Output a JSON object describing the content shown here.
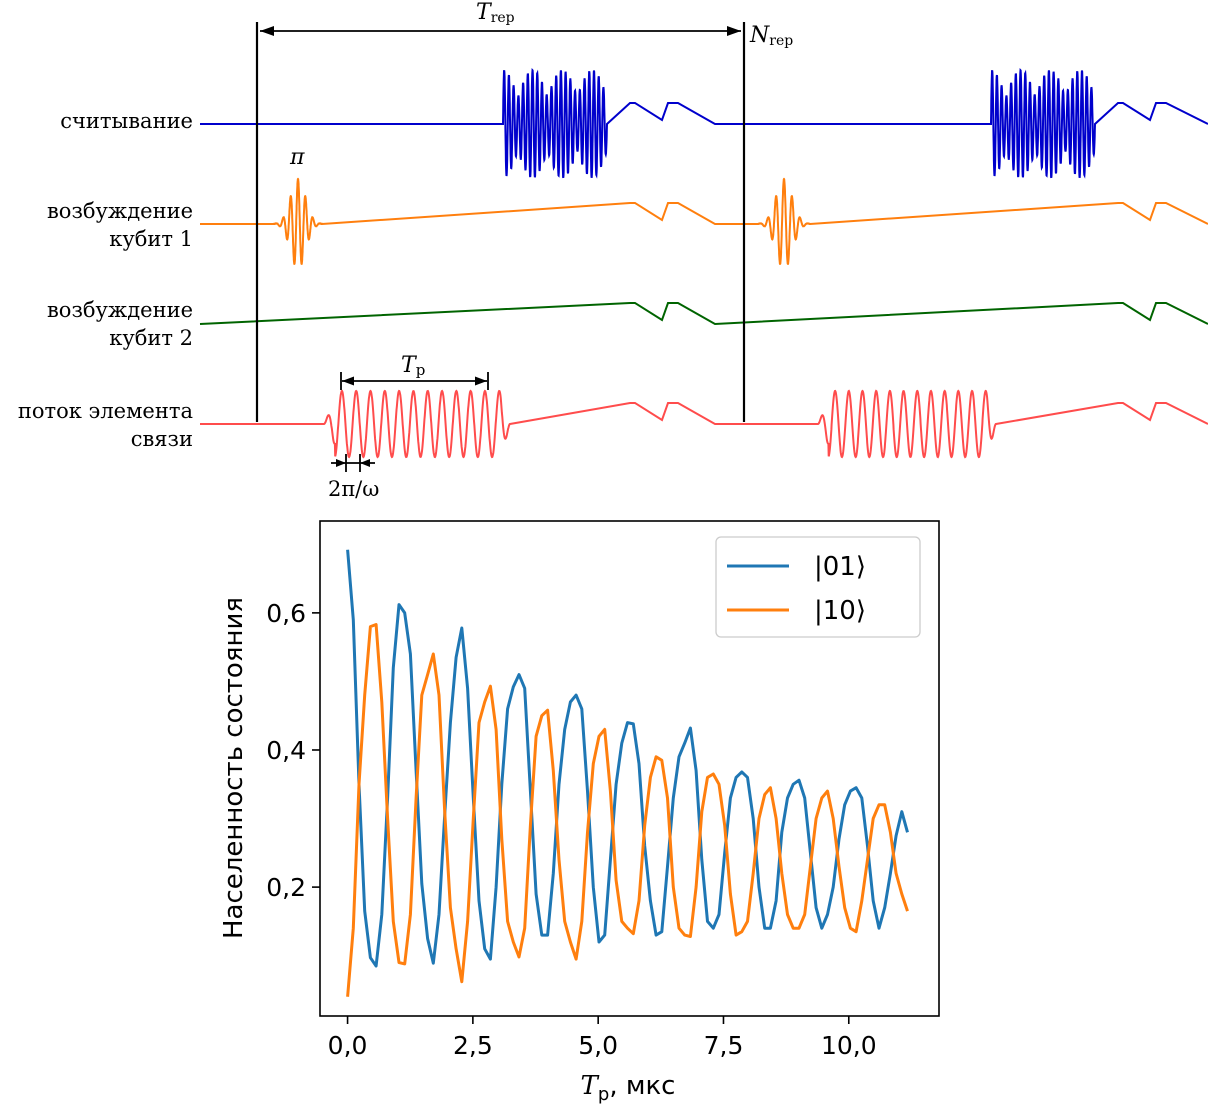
{
  "pulse_diagram": {
    "channels": [
      {
        "label_lines": [
          "считывание"
        ],
        "color": "#0000cc",
        "envelope": "readout"
      },
      {
        "label_lines": [
          "возбуждение",
          "кубит 1"
        ],
        "color": "#ff7f0e",
        "envelope": "pi"
      },
      {
        "label_lines": [
          "возбуждение",
          "кубит 2"
        ],
        "color": "#006400",
        "envelope": "none"
      },
      {
        "label_lines": [
          "поток элемента",
          "связи"
        ],
        "color": "#ff4c4c",
        "envelope": "flux"
      }
    ],
    "t_rep_label": "T",
    "t_rep_sub": "rep",
    "n_rep_label": "N",
    "n_rep_sub": "rep",
    "pi_label": "π",
    "tp_label": "T",
    "tp_sub": "p",
    "period_label": "2π/ω"
  },
  "chart_data": {
    "type": "line",
    "xlabel_main": "T",
    "xlabel_sub": "p",
    "xlabel_unit": ", мкс",
    "ylabel": "Населенность состояния",
    "xlim": [
      -0.55,
      11.8
    ],
    "ylim": [
      0.012,
      0.734
    ],
    "xticks": [
      0.0,
      2.5,
      5.0,
      7.5,
      10.0
    ],
    "xtick_labels": [
      "0,0",
      "2,5",
      "5,0",
      "7,5",
      "10,0"
    ],
    "yticks": [
      0.2,
      0.4,
      0.6
    ],
    "ytick_labels": [
      "0,2",
      "0,4",
      "0,6"
    ],
    "legend_position": "top-right",
    "series": [
      {
        "name": "|01⟩",
        "color": "#1f77b4",
        "points": [
          [
            0.0,
            0.692
          ],
          [
            0.114,
            0.59
          ],
          [
            0.228,
            0.35
          ],
          [
            0.342,
            0.165
          ],
          [
            0.456,
            0.097
          ],
          [
            0.57,
            0.085
          ],
          [
            0.684,
            0.16
          ],
          [
            0.798,
            0.33
          ],
          [
            0.912,
            0.52
          ],
          [
            1.026,
            0.612
          ],
          [
            1.14,
            0.6
          ],
          [
            1.254,
            0.54
          ],
          [
            1.368,
            0.37
          ],
          [
            1.482,
            0.205
          ],
          [
            1.596,
            0.125
          ],
          [
            1.71,
            0.089
          ],
          [
            1.824,
            0.16
          ],
          [
            1.938,
            0.305
          ],
          [
            2.052,
            0.44
          ],
          [
            2.166,
            0.535
          ],
          [
            2.28,
            0.578
          ],
          [
            2.394,
            0.49
          ],
          [
            2.508,
            0.33
          ],
          [
            2.622,
            0.18
          ],
          [
            2.736,
            0.11
          ],
          [
            2.85,
            0.095
          ],
          [
            2.964,
            0.2
          ],
          [
            3.078,
            0.35
          ],
          [
            3.192,
            0.46
          ],
          [
            3.306,
            0.492
          ],
          [
            3.42,
            0.51
          ],
          [
            3.534,
            0.49
          ],
          [
            3.648,
            0.34
          ],
          [
            3.762,
            0.19
          ],
          [
            3.876,
            0.13
          ],
          [
            3.99,
            0.13
          ],
          [
            4.104,
            0.22
          ],
          [
            4.218,
            0.35
          ],
          [
            4.332,
            0.43
          ],
          [
            4.446,
            0.47
          ],
          [
            4.56,
            0.48
          ],
          [
            4.674,
            0.46
          ],
          [
            4.788,
            0.34
          ],
          [
            4.902,
            0.2
          ],
          [
            5.016,
            0.12
          ],
          [
            5.13,
            0.13
          ],
          [
            5.244,
            0.24
          ],
          [
            5.358,
            0.35
          ],
          [
            5.472,
            0.41
          ],
          [
            5.586,
            0.44
          ],
          [
            5.7,
            0.438
          ],
          [
            5.814,
            0.38
          ],
          [
            5.928,
            0.26
          ],
          [
            6.042,
            0.18
          ],
          [
            6.156,
            0.13
          ],
          [
            6.27,
            0.135
          ],
          [
            6.384,
            0.23
          ],
          [
            6.498,
            0.33
          ],
          [
            6.612,
            0.39
          ],
          [
            6.726,
            0.41
          ],
          [
            6.84,
            0.432
          ],
          [
            6.954,
            0.37
          ],
          [
            7.068,
            0.24
          ],
          [
            7.182,
            0.15
          ],
          [
            7.296,
            0.14
          ],
          [
            7.41,
            0.16
          ],
          [
            7.524,
            0.25
          ],
          [
            7.638,
            0.33
          ],
          [
            7.752,
            0.36
          ],
          [
            7.866,
            0.368
          ],
          [
            7.98,
            0.36
          ],
          [
            8.094,
            0.3
          ],
          [
            8.208,
            0.2
          ],
          [
            8.322,
            0.14
          ],
          [
            8.436,
            0.14
          ],
          [
            8.55,
            0.18
          ],
          [
            8.664,
            0.28
          ],
          [
            8.778,
            0.33
          ],
          [
            8.892,
            0.35
          ],
          [
            9.006,
            0.356
          ],
          [
            9.12,
            0.33
          ],
          [
            9.234,
            0.25
          ],
          [
            9.348,
            0.17
          ],
          [
            9.462,
            0.14
          ],
          [
            9.576,
            0.16
          ],
          [
            9.69,
            0.2
          ],
          [
            9.804,
            0.27
          ],
          [
            9.918,
            0.32
          ],
          [
            10.032,
            0.34
          ],
          [
            10.146,
            0.345
          ],
          [
            10.26,
            0.33
          ],
          [
            10.374,
            0.26
          ],
          [
            10.488,
            0.18
          ],
          [
            10.602,
            0.14
          ],
          [
            10.716,
            0.17
          ],
          [
            10.83,
            0.22
          ],
          [
            10.944,
            0.275
          ],
          [
            11.058,
            0.31
          ],
          [
            11.172,
            0.28
          ]
        ]
      },
      {
        "name": "|10⟩",
        "color": "#ff7f0e",
        "points": [
          [
            0.0,
            0.04
          ],
          [
            0.114,
            0.14
          ],
          [
            0.228,
            0.35
          ],
          [
            0.342,
            0.48
          ],
          [
            0.456,
            0.58
          ],
          [
            0.57,
            0.583
          ],
          [
            0.684,
            0.47
          ],
          [
            0.798,
            0.3
          ],
          [
            0.912,
            0.15
          ],
          [
            1.026,
            0.09
          ],
          [
            1.14,
            0.088
          ],
          [
            1.254,
            0.16
          ],
          [
            1.368,
            0.33
          ],
          [
            1.482,
            0.48
          ],
          [
            1.596,
            0.51
          ],
          [
            1.71,
            0.54
          ],
          [
            1.824,
            0.48
          ],
          [
            1.938,
            0.31
          ],
          [
            2.052,
            0.17
          ],
          [
            2.166,
            0.11
          ],
          [
            2.28,
            0.062
          ],
          [
            2.394,
            0.15
          ],
          [
            2.508,
            0.3
          ],
          [
            2.622,
            0.44
          ],
          [
            2.736,
            0.47
          ],
          [
            2.85,
            0.493
          ],
          [
            2.964,
            0.43
          ],
          [
            3.078,
            0.27
          ],
          [
            3.192,
            0.15
          ],
          [
            3.306,
            0.12
          ],
          [
            3.42,
            0.098
          ],
          [
            3.534,
            0.14
          ],
          [
            3.648,
            0.29
          ],
          [
            3.762,
            0.42
          ],
          [
            3.876,
            0.45
          ],
          [
            3.99,
            0.458
          ],
          [
            4.104,
            0.37
          ],
          [
            4.218,
            0.24
          ],
          [
            4.332,
            0.15
          ],
          [
            4.446,
            0.12
          ],
          [
            4.56,
            0.095
          ],
          [
            4.674,
            0.15
          ],
          [
            4.788,
            0.28
          ],
          [
            4.902,
            0.38
          ],
          [
            5.016,
            0.42
          ],
          [
            5.13,
            0.43
          ],
          [
            5.244,
            0.34
          ],
          [
            5.358,
            0.21
          ],
          [
            5.472,
            0.15
          ],
          [
            5.586,
            0.14
          ],
          [
            5.7,
            0.132
          ],
          [
            5.814,
            0.18
          ],
          [
            5.928,
            0.29
          ],
          [
            6.042,
            0.36
          ],
          [
            6.156,
            0.39
          ],
          [
            6.27,
            0.385
          ],
          [
            6.384,
            0.33
          ],
          [
            6.498,
            0.2
          ],
          [
            6.612,
            0.14
          ],
          [
            6.726,
            0.13
          ],
          [
            6.84,
            0.128
          ],
          [
            6.954,
            0.2
          ],
          [
            7.068,
            0.31
          ],
          [
            7.182,
            0.36
          ],
          [
            7.296,
            0.365
          ],
          [
            7.41,
            0.35
          ],
          [
            7.524,
            0.29
          ],
          [
            7.638,
            0.19
          ],
          [
            7.752,
            0.13
          ],
          [
            7.866,
            0.135
          ],
          [
            7.98,
            0.15
          ],
          [
            8.094,
            0.22
          ],
          [
            8.208,
            0.3
          ],
          [
            8.322,
            0.335
          ],
          [
            8.436,
            0.345
          ],
          [
            8.55,
            0.3
          ],
          [
            8.664,
            0.22
          ],
          [
            8.778,
            0.16
          ],
          [
            8.892,
            0.14
          ],
          [
            9.006,
            0.14
          ],
          [
            9.12,
            0.16
          ],
          [
            9.234,
            0.23
          ],
          [
            9.348,
            0.3
          ],
          [
            9.462,
            0.33
          ],
          [
            9.576,
            0.34
          ],
          [
            9.69,
            0.3
          ],
          [
            9.804,
            0.23
          ],
          [
            9.918,
            0.17
          ],
          [
            10.032,
            0.14
          ],
          [
            10.146,
            0.135
          ],
          [
            10.26,
            0.18
          ],
          [
            10.374,
            0.24
          ],
          [
            10.488,
            0.3
          ],
          [
            10.602,
            0.32
          ],
          [
            10.716,
            0.32
          ],
          [
            10.83,
            0.28
          ],
          [
            10.944,
            0.22
          ],
          [
            11.058,
            0.19
          ],
          [
            11.172,
            0.165
          ]
        ]
      }
    ]
  }
}
